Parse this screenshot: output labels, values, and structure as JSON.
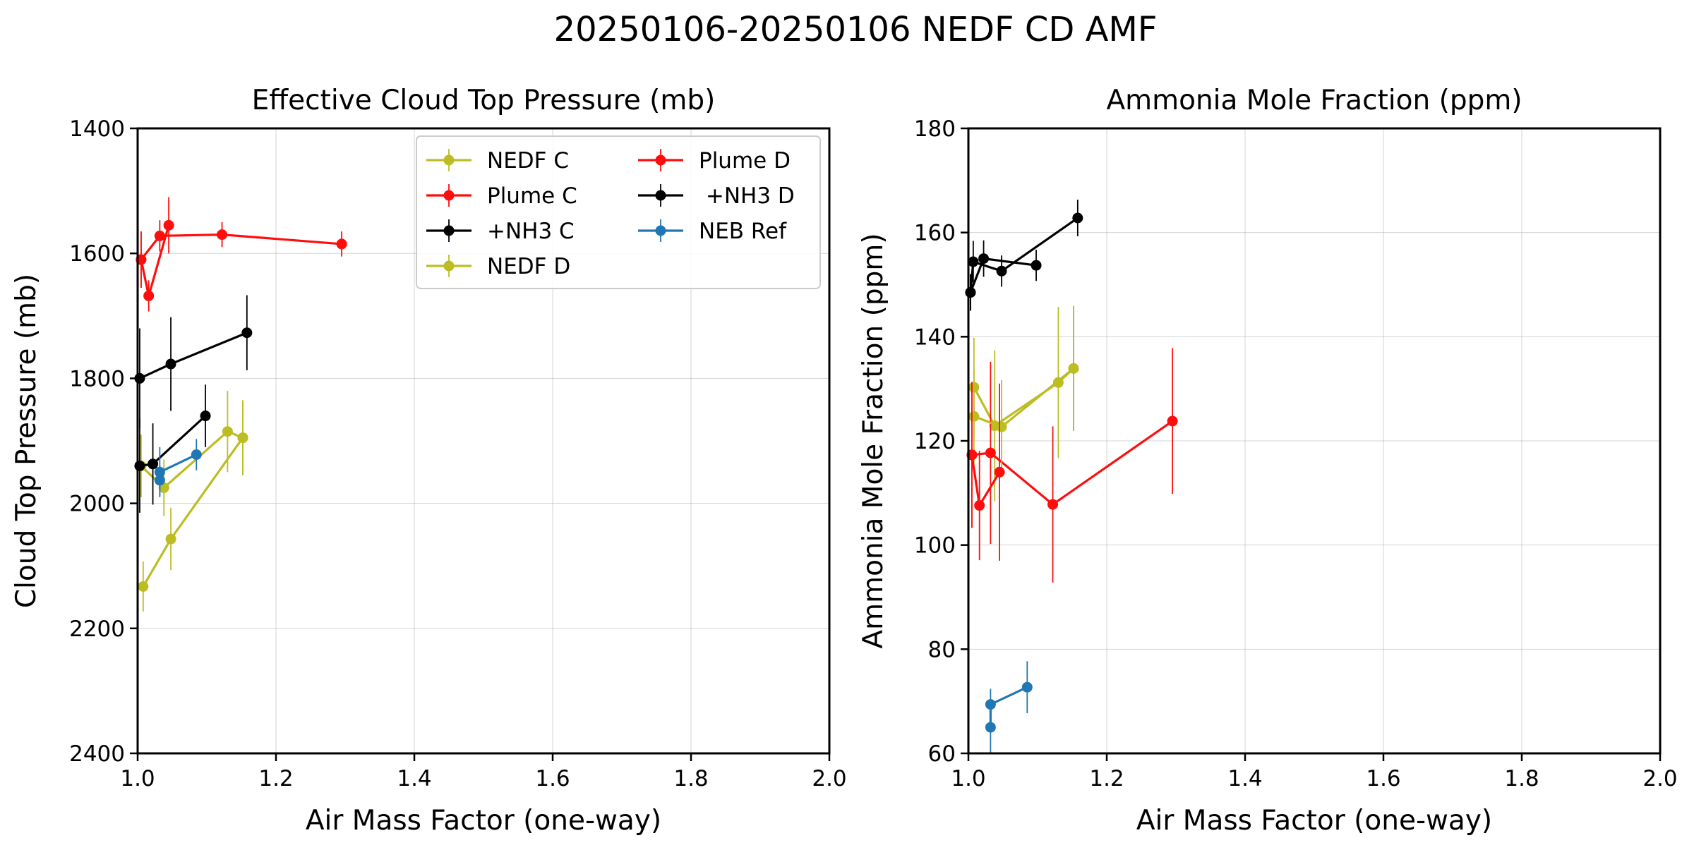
{
  "figure_title": "20250106-20250106 NEDF CD AMF",
  "colors": {
    "olive": "#bcbd22",
    "red": "#ff0d0d",
    "black": "#000000",
    "blue": "#1f77b4"
  },
  "chart_data": [
    {
      "type": "line",
      "title": "Effective Cloud Top Pressure (mb)",
      "xlabel": "Air Mass Factor (one-way)",
      "ylabel": "Cloud Top Pressure (mb)",
      "xlim": [
        1.0,
        2.0
      ],
      "ylim": [
        2400,
        1400
      ],
      "y_inverted": true,
      "xticks": [
        "1.0",
        "1.2",
        "1.4",
        "1.6",
        "1.8",
        "2.0"
      ],
      "yticks": [
        "1400",
        "1600",
        "1800",
        "2000",
        "2200",
        "2400"
      ],
      "grid": true,
      "legend": {
        "placement": "upper-right",
        "columns": 2
      },
      "series": [
        {
          "name": "NEDF C",
          "color": "#bcbd22",
          "points": [
            {
              "x": 1.005,
              "y": 1940,
              "err": 50
            },
            {
              "x": 1.038,
              "y": 1975,
              "err": 45
            },
            {
              "x": 1.13,
              "y": 1885,
              "err": 65
            },
            {
              "x": 1.152,
              "y": 1895,
              "err": 60
            }
          ]
        },
        {
          "name": "Plume C",
          "color": "#ff0d0d",
          "points": [
            {
              "x": 1.005,
              "y": 1610,
              "err": 45
            },
            {
              "x": 1.032,
              "y": 1572,
              "err": 25
            },
            {
              "x": 1.122,
              "y": 1570,
              "err": 20
            },
            {
              "x": 1.295,
              "y": 1585,
              "err": 20
            }
          ]
        },
        {
          "name": "+NH3 C",
          "color": "#000000",
          "points": [
            {
              "x": 1.003,
              "y": 1940,
              "err": 75
            },
            {
              "x": 1.022,
              "y": 1937,
              "err": 65
            },
            {
              "x": 1.098,
              "y": 1860,
              "err": 50
            }
          ]
        },
        {
          "name": "NEDF D",
          "color": "#bcbd22",
          "points": [
            {
              "x": 1.008,
              "y": 2133,
              "err": 40
            },
            {
              "x": 1.048,
              "y": 2057,
              "err": 50
            },
            {
              "x": 1.152,
              "y": 1895,
              "err": 60
            }
          ]
        },
        {
          "name": "Plume D",
          "color": "#ff0d0d",
          "points": [
            {
              "x": 1.005,
              "y": 1610,
              "err": 45
            },
            {
              "x": 1.016,
              "y": 1668,
              "err": 25
            },
            {
              "x": 1.045,
              "y": 1555,
              "err": 45
            }
          ]
        },
        {
          "name": " +NH3 D",
          "color": "#000000",
          "points": [
            {
              "x": 1.003,
              "y": 1800,
              "err": 80
            },
            {
              "x": 1.048,
              "y": 1777,
              "err": 75
            },
            {
              "x": 1.158,
              "y": 1727,
              "err": 60
            }
          ]
        },
        {
          "name": "NEB Ref",
          "color": "#1f77b4",
          "points": [
            {
              "x": 1.032,
              "y": 1963,
              "err": 25
            },
            {
              "x": 1.032,
              "y": 1950,
              "err": 40
            },
            {
              "x": 1.085,
              "y": 1922,
              "err": 25
            }
          ]
        }
      ]
    },
    {
      "type": "line",
      "title": "Ammonia Mole Fraction (ppm)",
      "xlabel": "Air Mass Factor (one-way)",
      "ylabel": "Ammonia Mole Fraction (ppm)",
      "xlim": [
        1.0,
        2.0
      ],
      "ylim": [
        60,
        180
      ],
      "xticks": [
        "1.0",
        "1.2",
        "1.4",
        "1.6",
        "1.8",
        "2.0"
      ],
      "yticks": [
        "60",
        "80",
        "100",
        "120",
        "140",
        "160",
        "180"
      ],
      "grid": true,
      "series": [
        {
          "name": "NEDF C",
          "color": "#bcbd22",
          "points": [
            {
              "x": 1.008,
              "y": 130.3,
              "err": 9.5
            },
            {
              "x": 1.038,
              "y": 122.9,
              "err": 14.5
            },
            {
              "x": 1.13,
              "y": 131.2,
              "err": 14.5
            },
            {
              "x": 1.152,
              "y": 133.9,
              "err": 12
            }
          ]
        },
        {
          "name": "Plume C",
          "color": "#ff0d0d",
          "points": [
            {
              "x": 1.005,
              "y": 117.3,
              "err": 14
            },
            {
              "x": 1.032,
              "y": 117.7,
              "err": 17.5
            },
            {
              "x": 1.122,
              "y": 107.8,
              "err": 15
            },
            {
              "x": 1.295,
              "y": 123.8,
              "err": 14
            }
          ]
        },
        {
          "name": "+NH3 C",
          "color": "#000000",
          "points": [
            {
              "x": 1.003,
              "y": 148.5,
              "err": 3.5
            },
            {
              "x": 1.022,
              "y": 155.0,
              "err": 3.5
            },
            {
              "x": 1.098,
              "y": 153.7,
              "err": 3
            }
          ]
        },
        {
          "name": "NEDF D",
          "color": "#bcbd22",
          "points": [
            {
              "x": 1.008,
              "y": 124.7,
              "err": 9
            },
            {
              "x": 1.048,
              "y": 122.7,
              "err": 9
            },
            {
              "x": 1.152,
              "y": 133.9,
              "err": 12
            }
          ]
        },
        {
          "name": "Plume D",
          "color": "#ff0d0d",
          "points": [
            {
              "x": 1.005,
              "y": 117.3,
              "err": 14
            },
            {
              "x": 1.016,
              "y": 107.6,
              "err": 10.5
            },
            {
              "x": 1.045,
              "y": 114.0,
              "err": 17
            }
          ]
        },
        {
          "name": " +NH3 D",
          "color": "#000000",
          "points": [
            {
              "x": 1.003,
              "y": 148.5,
              "err": 3.5
            },
            {
              "x": 1.007,
              "y": 154.4,
              "err": 4
            },
            {
              "x": 1.048,
              "y": 152.6,
              "err": 3
            },
            {
              "x": 1.158,
              "y": 162.8,
              "err": 3.5
            }
          ]
        },
        {
          "name": "NEB Ref",
          "color": "#1f77b4",
          "points": [
            {
              "x": 1.032,
              "y": 65.0,
              "err": 5
            },
            {
              "x": 1.032,
              "y": 69.4,
              "err": 3
            },
            {
              "x": 1.085,
              "y": 72.7,
              "err": 5
            }
          ]
        }
      ]
    }
  ]
}
